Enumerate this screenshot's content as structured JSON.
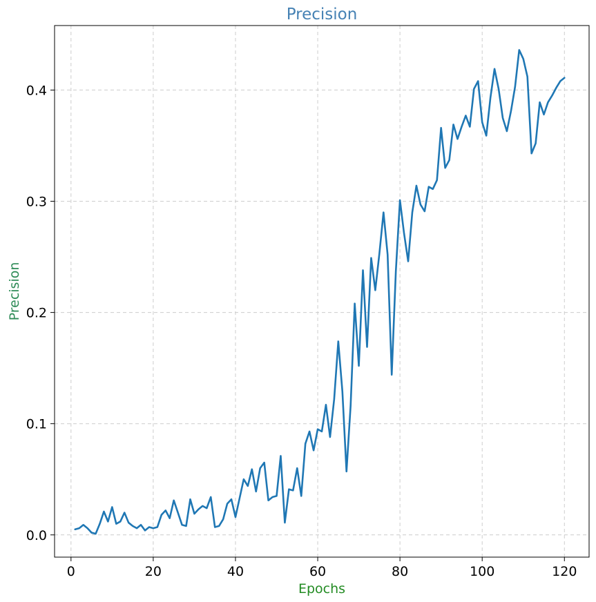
{
  "chart_data": {
    "type": "line",
    "title": "Precision",
    "xlabel": "Epochs",
    "ylabel": "Precision",
    "xlim": [
      -4,
      126
    ],
    "ylim": [
      -0.02,
      0.458
    ],
    "xticks": [
      0,
      20,
      40,
      60,
      80,
      100,
      120
    ],
    "yticks": [
      0.0,
      0.1,
      0.2,
      0.3,
      0.4
    ],
    "ytick_labels": [
      "0.0",
      "0.1",
      "0.2",
      "0.3",
      "0.4"
    ],
    "grid": true,
    "legend": "none",
    "colors": {
      "line": "#1f77b4",
      "title": "#4682b4",
      "xlabel": "#228b22",
      "ylabel": "#2e8b57",
      "grid": "#cccccc"
    },
    "series": [
      {
        "x": [
          1,
          2,
          3,
          4,
          5,
          6,
          7,
          8,
          9,
          10,
          11,
          12,
          13,
          14,
          15,
          16,
          17,
          18,
          19,
          20,
          21,
          22,
          23,
          24,
          25,
          26,
          27,
          28,
          29,
          30,
          31,
          32,
          33,
          34,
          35,
          36,
          37,
          38,
          39,
          40,
          41,
          42,
          43,
          44,
          45,
          46,
          47,
          48,
          49,
          50,
          51,
          52,
          53,
          54,
          55,
          56,
          57,
          58,
          59,
          60,
          61,
          62,
          63,
          64,
          65,
          66,
          67,
          68,
          69,
          70,
          71,
          72,
          73,
          74,
          75,
          76,
          77,
          78,
          79,
          80,
          81,
          82,
          83,
          84,
          85,
          86,
          87,
          88,
          89,
          90,
          91,
          92,
          93,
          94,
          95,
          96,
          97,
          98,
          99,
          100,
          101,
          102,
          103,
          104,
          105,
          106,
          107,
          108,
          109,
          110,
          111,
          112,
          113,
          114,
          115,
          116,
          117,
          118,
          119,
          120
        ],
        "y": [
          0.005,
          0.006,
          0.009,
          0.006,
          0.002,
          0.001,
          0.01,
          0.021,
          0.012,
          0.025,
          0.01,
          0.012,
          0.02,
          0.011,
          0.008,
          0.006,
          0.009,
          0.004,
          0.007,
          0.006,
          0.007,
          0.018,
          0.022,
          0.015,
          0.031,
          0.02,
          0.009,
          0.008,
          0.032,
          0.019,
          0.023,
          0.026,
          0.024,
          0.034,
          0.007,
          0.008,
          0.014,
          0.028,
          0.032,
          0.016,
          0.033,
          0.05,
          0.044,
          0.059,
          0.039,
          0.06,
          0.065,
          0.031,
          0.034,
          0.035,
          0.071,
          0.011,
          0.041,
          0.04,
          0.06,
          0.035,
          0.082,
          0.093,
          0.076,
          0.095,
          0.093,
          0.117,
          0.088,
          0.122,
          0.174,
          0.129,
          0.057,
          0.116,
          0.208,
          0.152,
          0.238,
          0.169,
          0.249,
          0.22,
          0.253,
          0.29,
          0.252,
          0.144,
          0.237,
          0.301,
          0.271,
          0.246,
          0.29,
          0.314,
          0.297,
          0.291,
          0.313,
          0.311,
          0.319,
          0.366,
          0.33,
          0.337,
          0.369,
          0.356,
          0.367,
          0.377,
          0.367,
          0.401,
          0.408,
          0.371,
          0.359,
          0.393,
          0.419,
          0.401,
          0.375,
          0.363,
          0.381,
          0.403,
          0.436,
          0.428,
          0.412,
          0.343,
          0.352,
          0.389,
          0.378,
          0.389,
          0.395,
          0.402,
          0.408,
          0.411
        ]
      }
    ]
  }
}
